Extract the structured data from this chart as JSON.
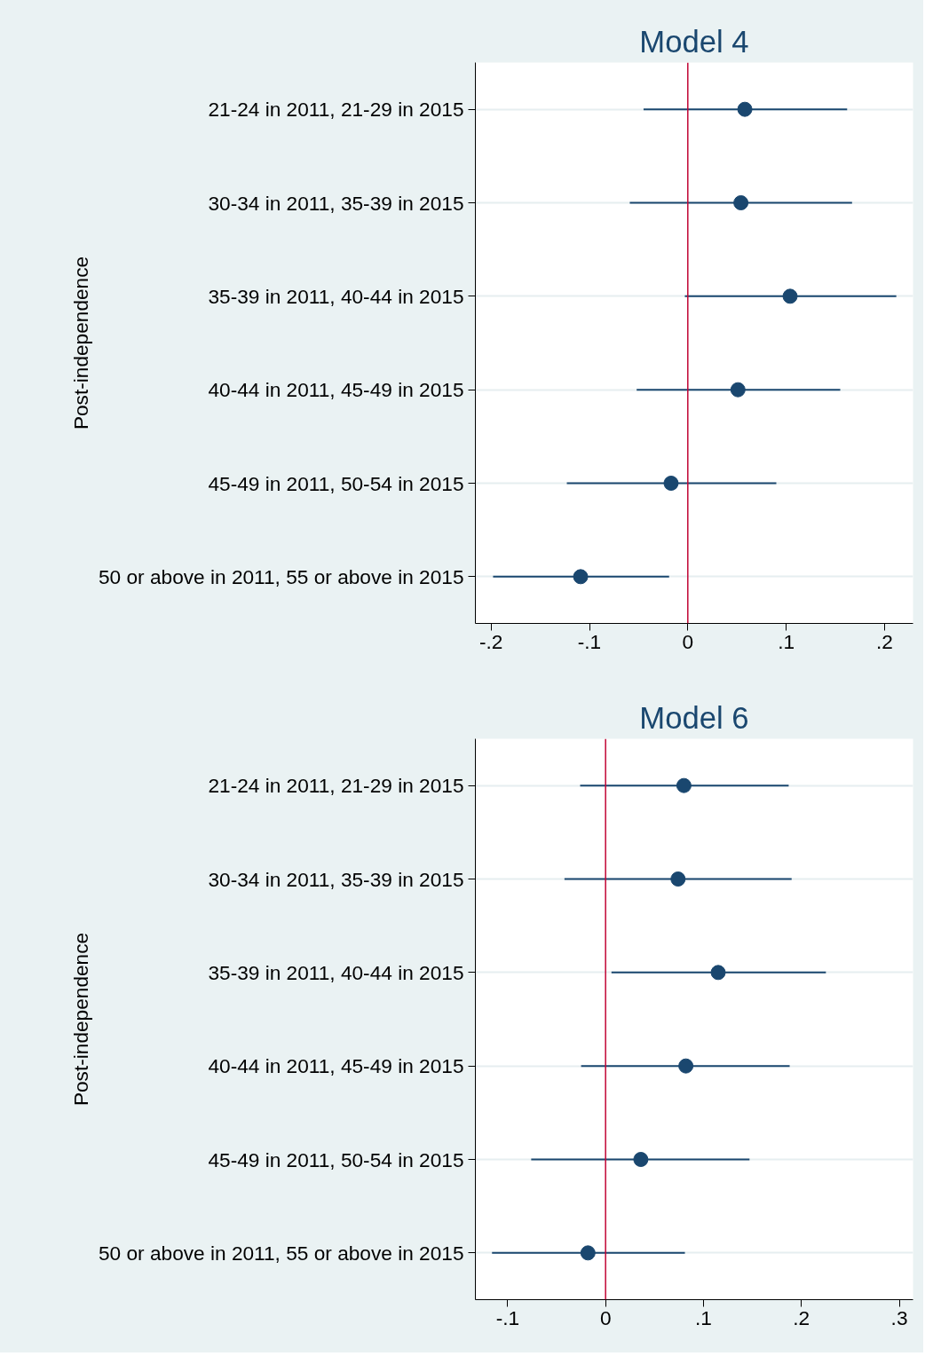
{
  "chart_data": [
    {
      "type": "scatter",
      "orientation": "horizontal",
      "title": "Model 4",
      "ylabel": "Post-independence",
      "categories": [
        "21-24 in 2011, 21-29 in 2015",
        "30-34 in 2011, 35-39 in 2015",
        "35-39 in 2011, 40-44 in 2015",
        "40-44 in 2011, 45-49 in 2015",
        "45-49 in 2011, 50-54 in 2015",
        "50 or above in 2011, 55 or above in 2015"
      ],
      "values": [
        0.058,
        0.054,
        0.104,
        0.051,
        -0.017,
        -0.109
      ],
      "errors": [
        [
          -0.045,
          0.162
        ],
        [
          -0.059,
          0.167
        ],
        [
          -0.003,
          0.212
        ],
        [
          -0.052,
          0.155
        ],
        [
          -0.123,
          0.09
        ],
        [
          -0.198,
          -0.019
        ]
      ],
      "color": "#1a476f",
      "marker": "circle",
      "grid": "y",
      "xlim": [
        -0.216,
        0.229
      ],
      "xticks": [
        {
          "value": -0.2,
          "label": "-.2"
        },
        {
          "value": -0.1,
          "label": "-.1"
        },
        0,
        {
          "value": 0.1,
          "label": ".1"
        },
        {
          "value": 0.2,
          "label": ".2"
        }
      ],
      "ref_lines": [
        {
          "axis": "x",
          "value": 0,
          "color": "#c10534"
        }
      ]
    },
    {
      "type": "scatter",
      "orientation": "horizontal",
      "title": "Model 6",
      "ylabel": "Post-independence",
      "categories": [
        "21-24 in 2011, 21-29 in 2015",
        "30-34 in 2011, 35-39 in 2015",
        "35-39 in 2011, 40-44 in 2015",
        "40-44 in 2011, 45-49 in 2015",
        "45-49 in 2011, 50-54 in 2015",
        "50 or above in 2011, 55 or above in 2015"
      ],
      "values": [
        0.08,
        0.074,
        0.115,
        0.082,
        0.036,
        -0.018
      ],
      "errors": [
        [
          -0.026,
          0.187
        ],
        [
          -0.042,
          0.19
        ],
        [
          0.006,
          0.225
        ],
        [
          -0.025,
          0.188
        ],
        [
          -0.076,
          0.147
        ],
        [
          -0.116,
          0.081
        ]
      ],
      "color": "#1a476f",
      "marker": "circle",
      "grid": "y",
      "xlim": [
        -0.133,
        0.314
      ],
      "xticks": [
        {
          "value": -0.1,
          "label": "-.1"
        },
        0,
        {
          "value": 0.1,
          "label": ".1"
        },
        {
          "value": 0.2,
          "label": ".2"
        },
        {
          "value": 0.3,
          "label": ".3"
        }
      ],
      "ref_lines": [
        {
          "axis": "x",
          "value": 0,
          "color": "#c10534"
        }
      ]
    }
  ]
}
